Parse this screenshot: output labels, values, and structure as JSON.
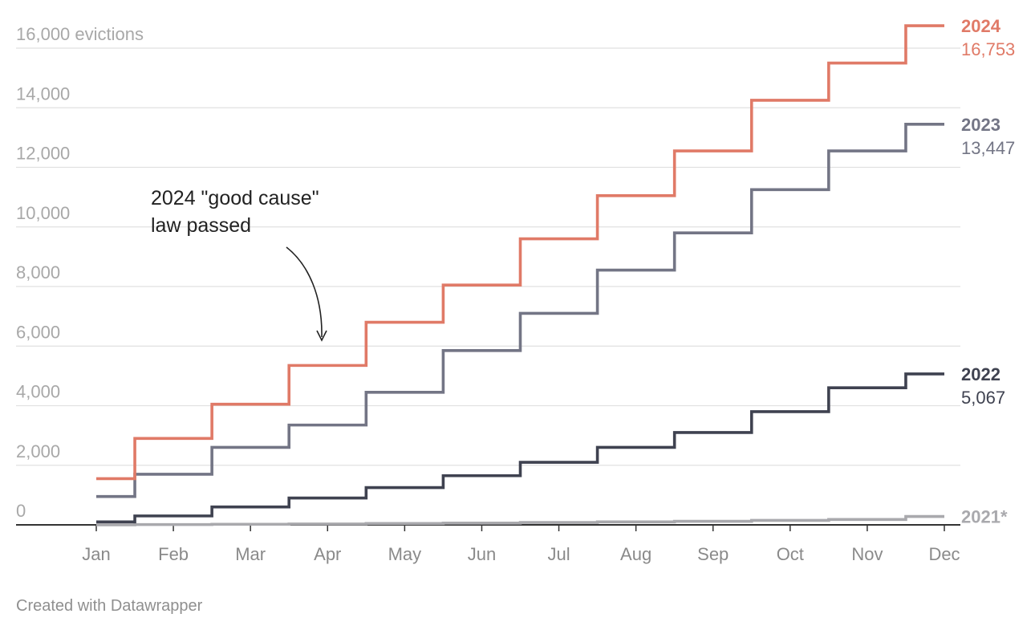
{
  "chart_data": {
    "type": "line",
    "step": true,
    "x": [
      "Jan",
      "Feb",
      "Mar",
      "Apr",
      "May",
      "Jun",
      "Jul",
      "Aug",
      "Sep",
      "Oct",
      "Nov",
      "Dec"
    ],
    "ylim": [
      0,
      16000
    ],
    "y_ticks": [
      {
        "value": 0,
        "label": "0"
      },
      {
        "value": 2000,
        "label": "2,000"
      },
      {
        "value": 4000,
        "label": "4,000"
      },
      {
        "value": 6000,
        "label": "6,000"
      },
      {
        "value": 8000,
        "label": "8,000"
      },
      {
        "value": 10000,
        "label": "10,000"
      },
      {
        "value": 12000,
        "label": "12,000"
      },
      {
        "value": 14000,
        "label": "14,000"
      },
      {
        "value": 16000,
        "label": "16,000 evictions"
      }
    ],
    "grid": true,
    "series": [
      {
        "name": "2021*",
        "label": "",
        "color": "#a9a9ad",
        "values": [
          0,
          10,
          20,
          30,
          45,
          60,
          80,
          100,
          120,
          150,
          180,
          280
        ]
      },
      {
        "name": "2022",
        "label": "5,067",
        "color": "#3f4250",
        "values": [
          100,
          300,
          600,
          900,
          1250,
          1650,
          2100,
          2600,
          3100,
          3800,
          4600,
          5067
        ]
      },
      {
        "name": "2023",
        "label": "13,447",
        "color": "#737585",
        "values": [
          950,
          1700,
          2600,
          3350,
          4450,
          5850,
          7100,
          8550,
          9800,
          11250,
          12550,
          13447
        ]
      },
      {
        "name": "2024",
        "label": "16,753",
        "color": "#e07a67",
        "values": [
          1550,
          2900,
          4050,
          5350,
          6800,
          8050,
          9600,
          11050,
          12550,
          14250,
          15500,
          16753
        ]
      }
    ],
    "annotations": [
      {
        "text_lines": [
          "2024 \"good cause\"",
          "law passed"
        ],
        "points_to": {
          "x": "Apr",
          "y": 6000
        }
      }
    ]
  },
  "credit": "Created with Datawrapper"
}
